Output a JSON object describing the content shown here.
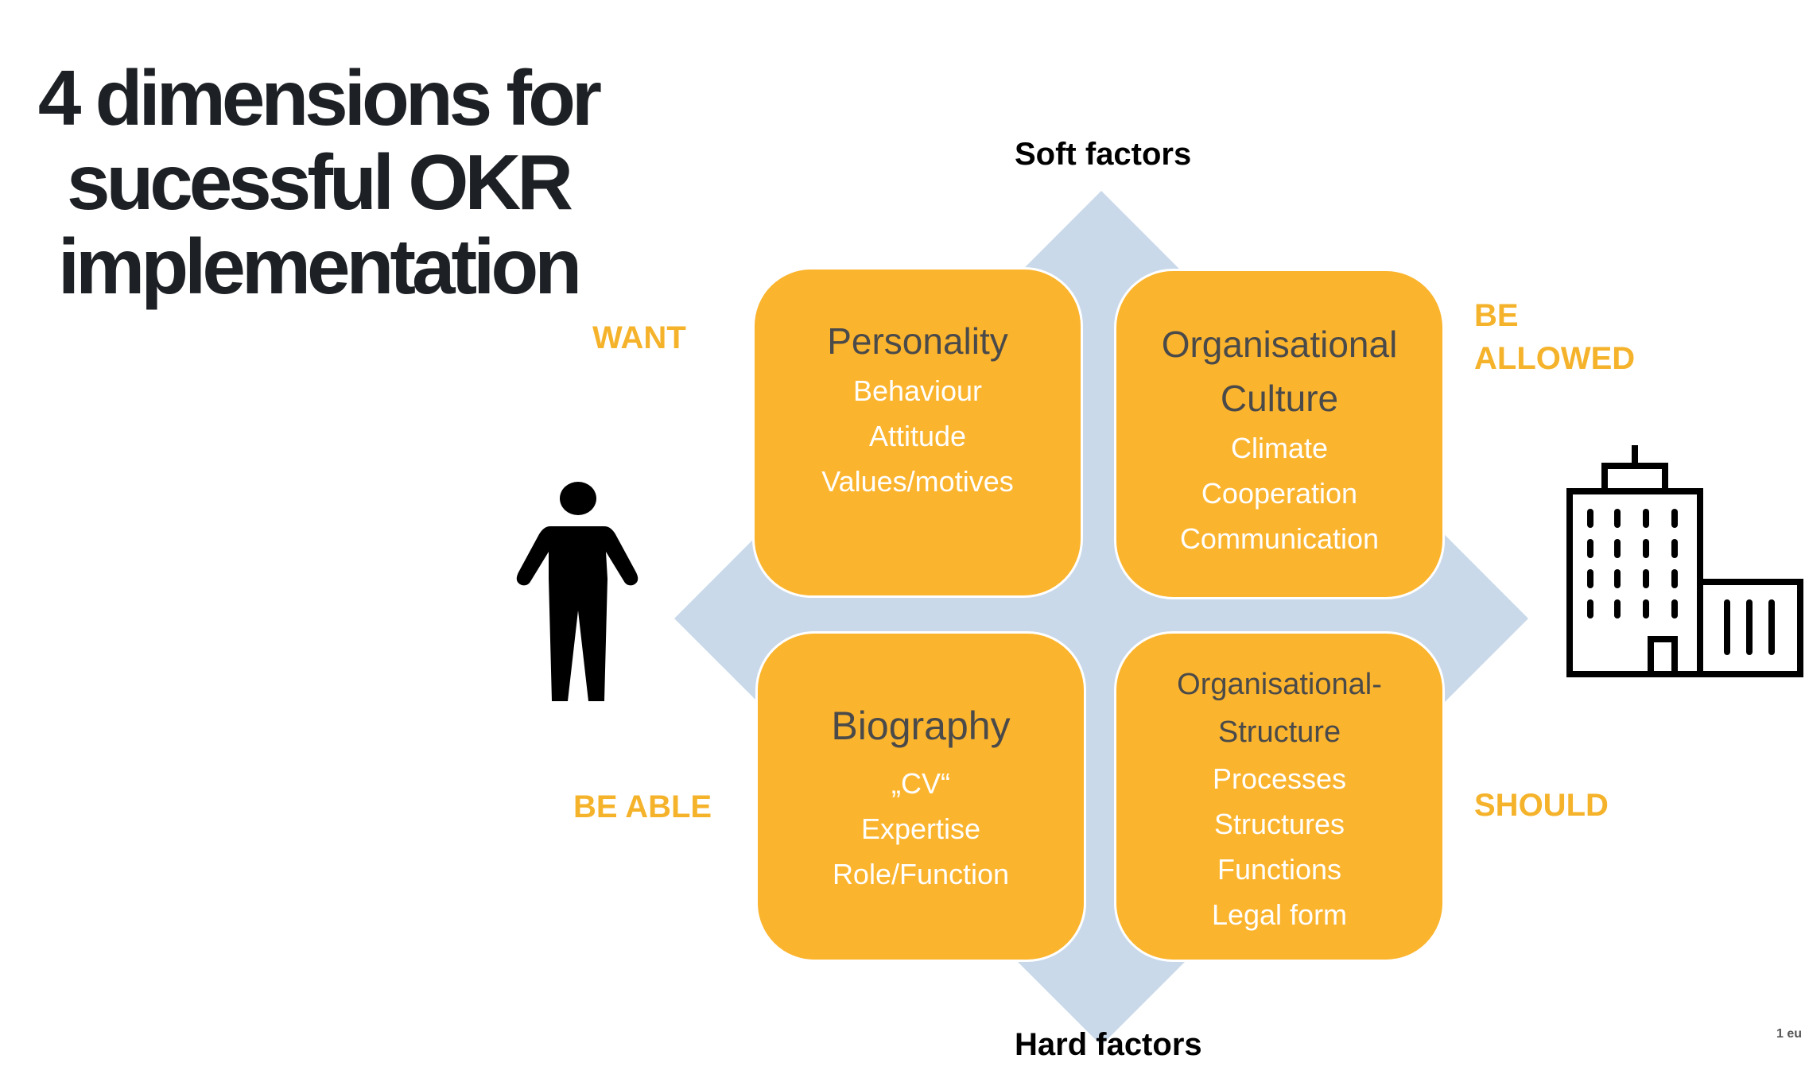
{
  "title": {
    "lines": [
      "4 dimensions for",
      "sucessful OKR",
      "implementation"
    ]
  },
  "axes": {
    "top": "Soft factors",
    "bottom": "Hard factors"
  },
  "dimensions": {
    "want": "WANT",
    "be_allowed": [
      "BE",
      "ALLOWED"
    ],
    "be_able": "BE ABLE",
    "should": "SHOULD"
  },
  "boxes": {
    "personality": {
      "head": [
        "Personality"
      ],
      "items": [
        "Behaviour",
        "Attitude",
        "Values/motives"
      ]
    },
    "culture": {
      "head": [
        "Organisational",
        "Culture"
      ],
      "items": [
        "Climate",
        "Cooperation",
        "Communication"
      ]
    },
    "biography": {
      "head": [
        "Biography"
      ],
      "items": [
        "„CV“",
        "Expertise",
        "Role/Function"
      ]
    },
    "structure": {
      "head": [
        "Organisational-",
        "Structure"
      ],
      "items": [
        "Processes",
        "Structures",
        "Functions",
        "Legal form"
      ]
    }
  },
  "footer": "1 eu",
  "colors": {
    "accent": "#fbb42e",
    "label": "#f5b32c",
    "diamond": "#c9d9ea",
    "title": "#1d2024"
  },
  "icons": {
    "left": "person-icon",
    "right": "building-icon"
  }
}
